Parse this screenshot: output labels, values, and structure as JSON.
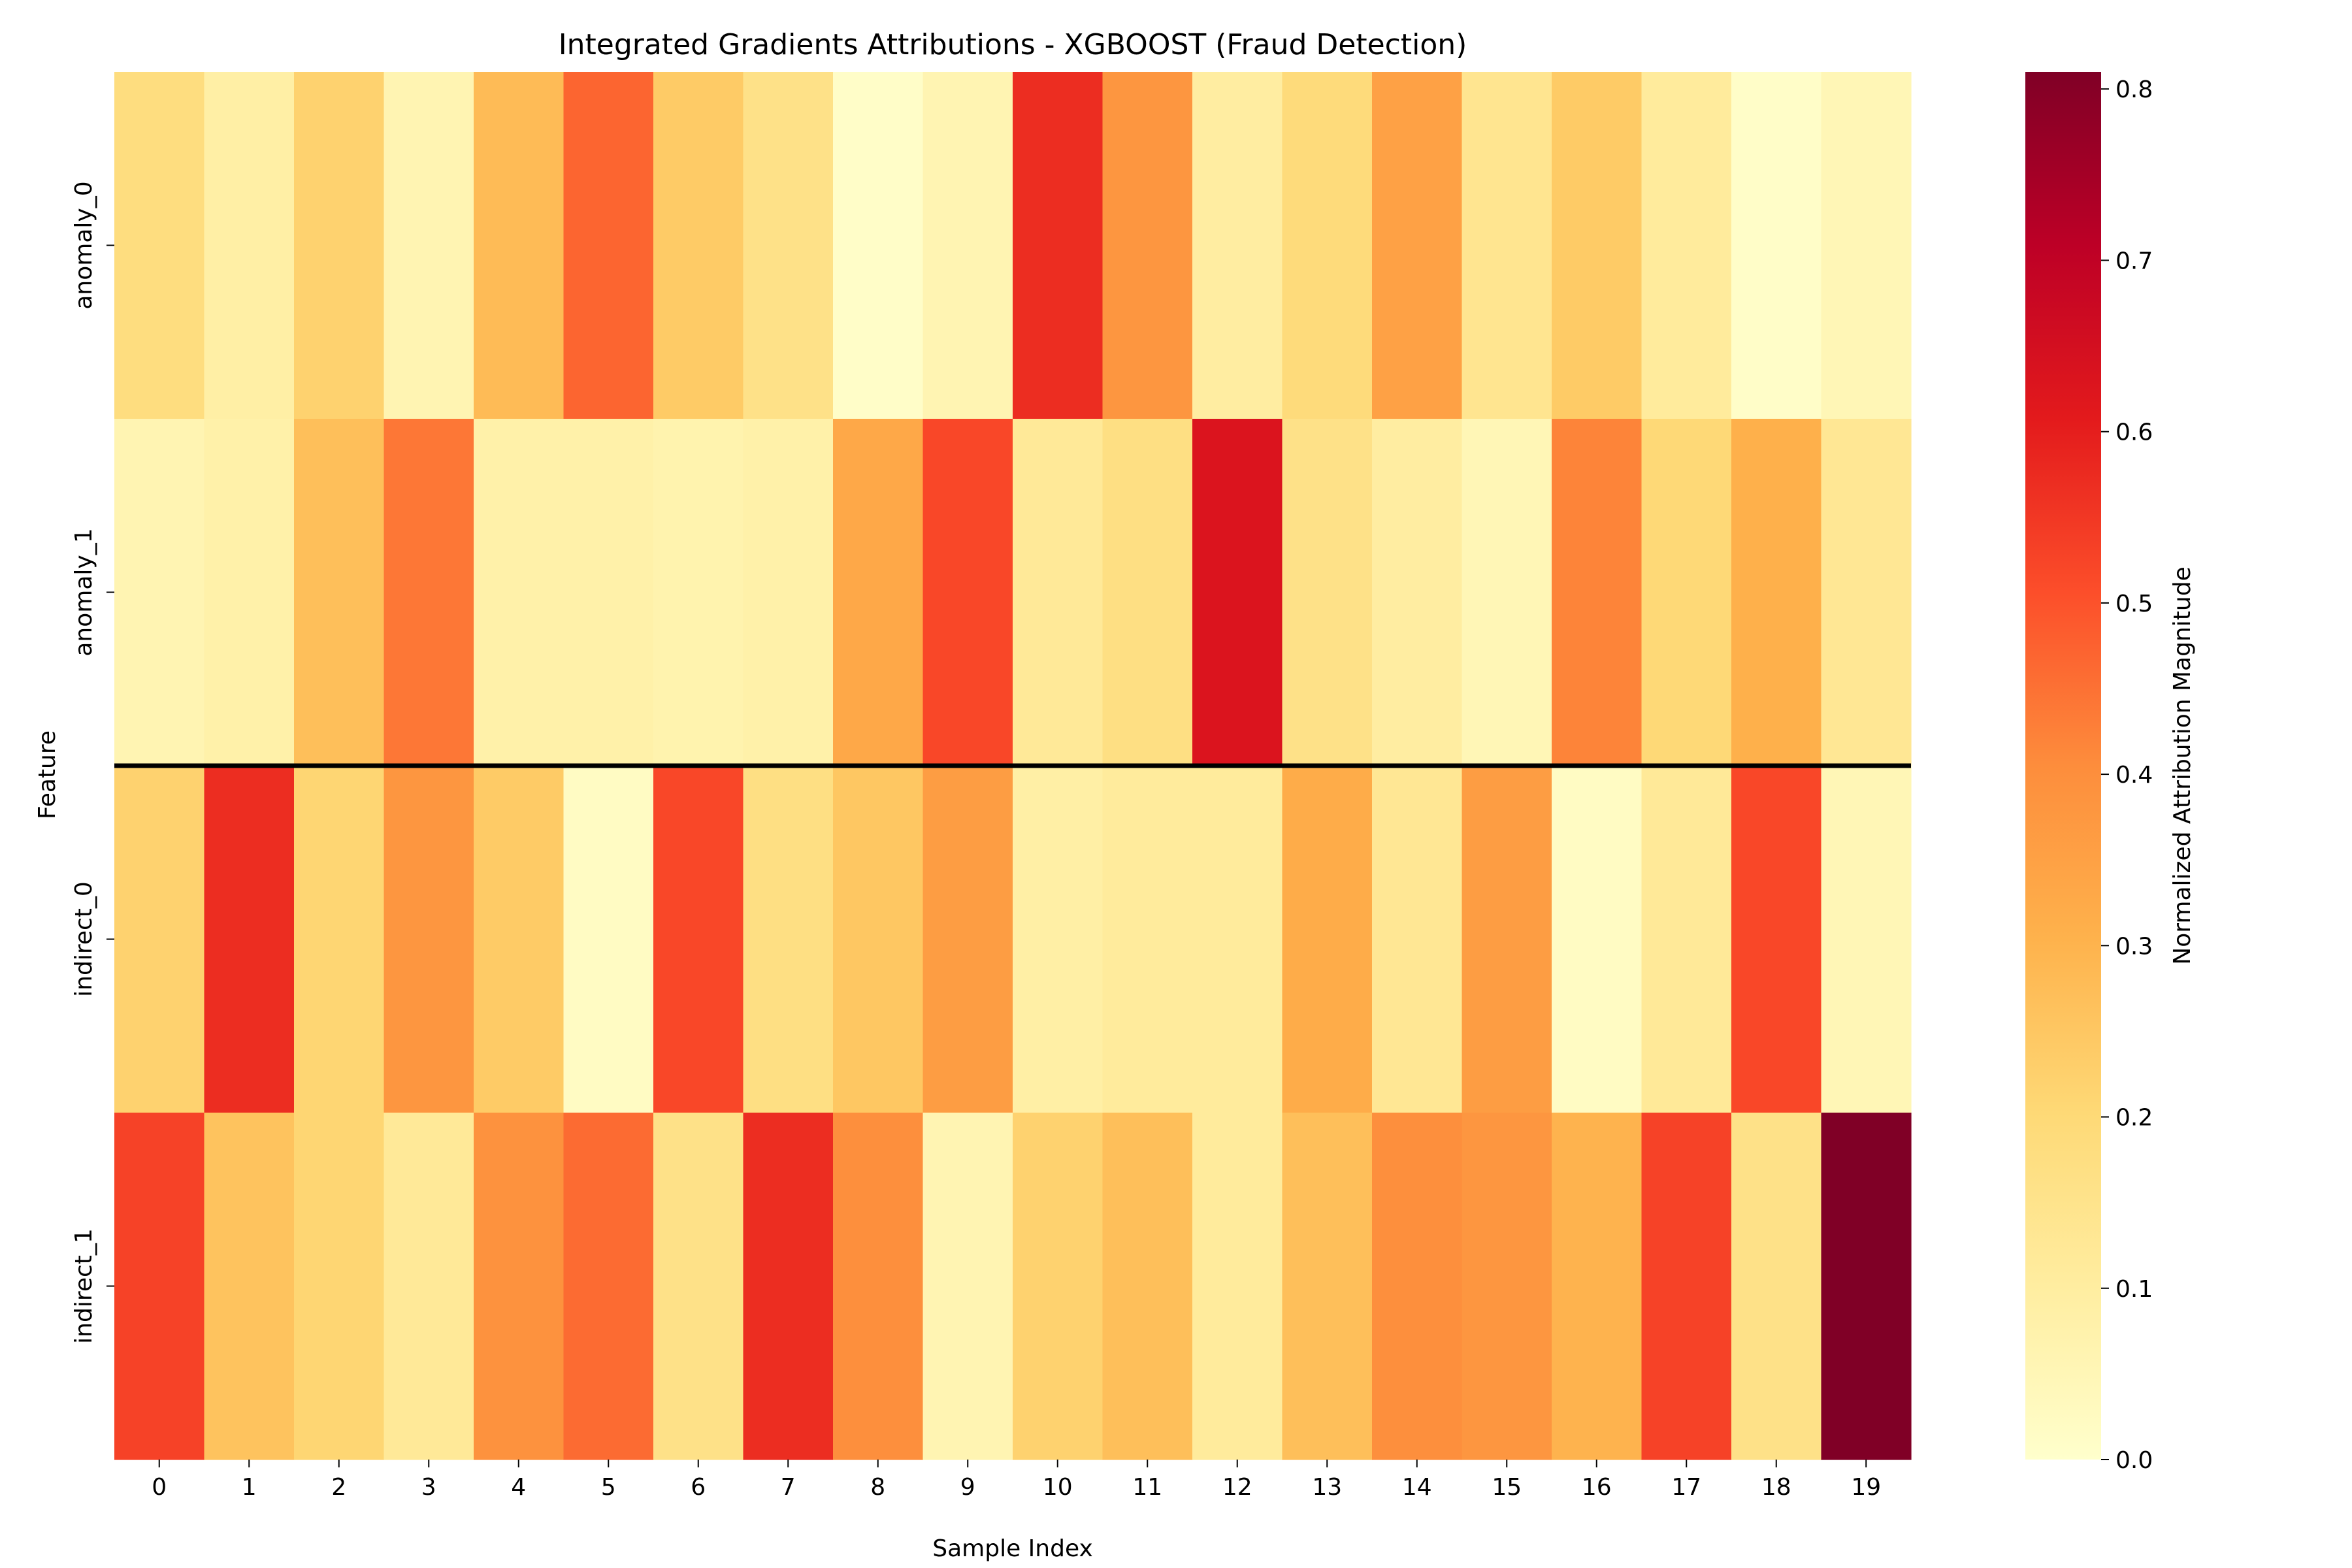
{
  "chart_data": {
    "type": "heatmap",
    "title": "Integrated Gradients Attributions - XGBOOST (Fraud Detection)",
    "xlabel": "Sample Index",
    "ylabel": "Feature",
    "x_categories": [
      "0",
      "1",
      "2",
      "3",
      "4",
      "5",
      "6",
      "7",
      "8",
      "9",
      "10",
      "11",
      "12",
      "13",
      "14",
      "15",
      "16",
      "17",
      "18",
      "19"
    ],
    "y_categories": [
      "anomaly_0",
      "anomaly_1",
      "indirect_0",
      "indirect_1"
    ],
    "values": [
      [
        0.18,
        0.09,
        0.22,
        0.06,
        0.28,
        0.47,
        0.24,
        0.16,
        0.01,
        0.06,
        0.57,
        0.38,
        0.1,
        0.19,
        0.35,
        0.14,
        0.24,
        0.11,
        0.01,
        0.05
      ],
      [
        0.06,
        0.08,
        0.27,
        0.44,
        0.08,
        0.08,
        0.07,
        0.08,
        0.33,
        0.52,
        0.12,
        0.17,
        0.63,
        0.16,
        0.1,
        0.05,
        0.42,
        0.2,
        0.31,
        0.13
      ],
      [
        0.22,
        0.57,
        0.21,
        0.38,
        0.24,
        0.02,
        0.52,
        0.17,
        0.25,
        0.36,
        0.09,
        0.11,
        0.11,
        0.32,
        0.13,
        0.36,
        0.02,
        0.12,
        0.52,
        0.05
      ],
      [
        0.53,
        0.26,
        0.21,
        0.12,
        0.39,
        0.46,
        0.16,
        0.57,
        0.4,
        0.06,
        0.22,
        0.27,
        0.11,
        0.27,
        0.4,
        0.38,
        0.3,
        0.53,
        0.16,
        0.81
      ]
    ],
    "colormap": "YlOrRd",
    "vmin": 0.0,
    "vmax": 0.81,
    "colorbar": {
      "label": "Normalized Attribution Magnitude",
      "ticks": [
        0.0,
        0.1,
        0.2,
        0.3,
        0.4,
        0.5,
        0.6,
        0.7,
        0.8
      ],
      "tick_labels": [
        "0.0",
        "0.1",
        "0.2",
        "0.3",
        "0.4",
        "0.5",
        "0.6",
        "0.7",
        "0.8"
      ]
    },
    "separator_after_row": 1,
    "grid": false,
    "colorbar_placement": "right"
  },
  "colors": {
    "colormap_stops": [
      "#ffffcc",
      "#ffeda0",
      "#fed976",
      "#feb24c",
      "#fd8d3c",
      "#fc4e2a",
      "#e31a1c",
      "#bd0026",
      "#800026"
    ],
    "separator": "#000000",
    "text": "#000000"
  }
}
